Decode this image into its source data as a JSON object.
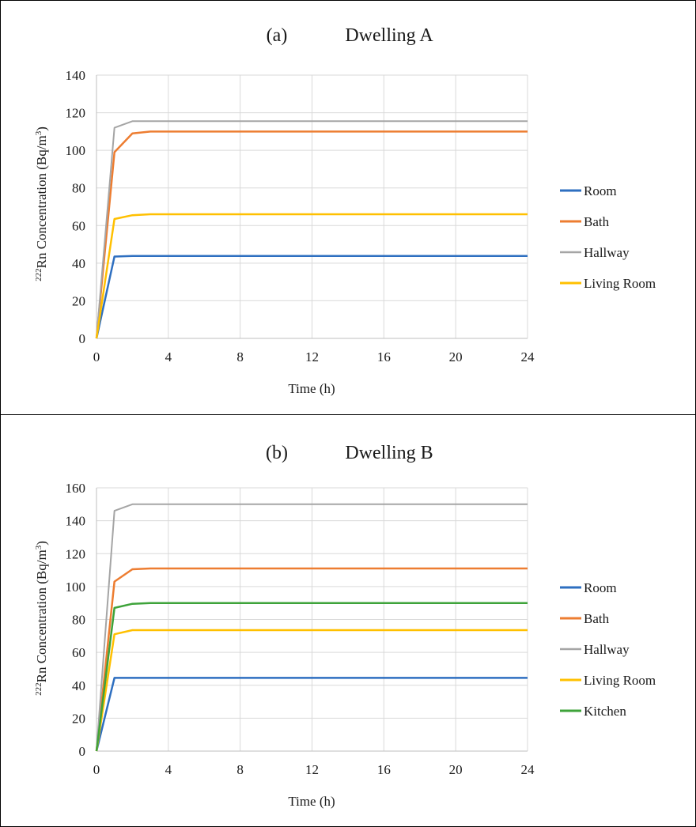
{
  "chart_data": [
    {
      "type": "line",
      "panel_label": "(a)",
      "title": "Dwelling A",
      "xlabel": "Time (h)",
      "ylabel_prefix": "222",
      "ylabel_main": "Rn Concentration (Bq/m",
      "ylabel_sup": "3",
      "ylabel_suffix": ")",
      "xlim": [
        0,
        24
      ],
      "ylim": [
        0,
        140
      ],
      "xticks": [
        0,
        4,
        8,
        12,
        16,
        20,
        24
      ],
      "yticks": [
        0,
        20,
        40,
        60,
        80,
        100,
        120,
        140
      ],
      "grid": true,
      "legend_position": "right",
      "x": [
        0,
        1,
        2,
        3,
        4,
        6,
        8,
        10,
        12,
        14,
        16,
        18,
        20,
        22,
        24
      ],
      "series": [
        {
          "name": "Room",
          "color": "#2e6fc0",
          "stroke": 2.5,
          "values": [
            0,
            43.5,
            43.8,
            43.8,
            43.8,
            43.8,
            43.8,
            43.8,
            43.8,
            43.8,
            43.8,
            43.8,
            43.8,
            43.8,
            43.8
          ]
        },
        {
          "name": "Bath",
          "color": "#ed7d31",
          "stroke": 2.5,
          "values": [
            0,
            99,
            109,
            110,
            110,
            110,
            110,
            110,
            110,
            110,
            110,
            110,
            110,
            110,
            110
          ]
        },
        {
          "name": "Hallway",
          "color": "#a5a5a5",
          "stroke": 2,
          "values": [
            0,
            112,
            115.5,
            115.5,
            115.5,
            115.5,
            115.5,
            115.5,
            115.5,
            115.5,
            115.5,
            115.5,
            115.5,
            115.5,
            115.5
          ]
        },
        {
          "name": "Living Room",
          "color": "#ffc000",
          "stroke": 2.5,
          "values": [
            0,
            63.5,
            65.5,
            66,
            66,
            66,
            66,
            66,
            66,
            66,
            66,
            66,
            66,
            66,
            66
          ]
        }
      ]
    },
    {
      "type": "line",
      "panel_label": "(b)",
      "title": "Dwelling B",
      "xlabel": "Time (h)",
      "ylabel_prefix": "222",
      "ylabel_main": "Rn Concentration (Bq/m",
      "ylabel_sup": "3",
      "ylabel_suffix": ")",
      "xlim": [
        0,
        24
      ],
      "ylim": [
        0,
        160
      ],
      "xticks": [
        0,
        4,
        8,
        12,
        16,
        20,
        24
      ],
      "yticks": [
        0,
        20,
        40,
        60,
        80,
        100,
        120,
        140,
        160
      ],
      "grid": true,
      "legend_position": "right",
      "x": [
        0,
        1,
        2,
        3,
        4,
        6,
        8,
        10,
        12,
        14,
        16,
        18,
        20,
        22,
        24
      ],
      "series": [
        {
          "name": "Room",
          "color": "#2e6fc0",
          "stroke": 2.5,
          "values": [
            0,
            44.5,
            44.5,
            44.5,
            44.5,
            44.5,
            44.5,
            44.5,
            44.5,
            44.5,
            44.5,
            44.5,
            44.5,
            44.5,
            44.5
          ]
        },
        {
          "name": "Bath",
          "color": "#ed7d31",
          "stroke": 2.5,
          "values": [
            0,
            103,
            110.5,
            111,
            111,
            111,
            111,
            111,
            111,
            111,
            111,
            111,
            111,
            111,
            111
          ]
        },
        {
          "name": "Hallway",
          "color": "#a5a5a5",
          "stroke": 2,
          "values": [
            0,
            146,
            150,
            150,
            150,
            150,
            150,
            150,
            150,
            150,
            150,
            150,
            150,
            150,
            150
          ]
        },
        {
          "name": "Living Room",
          "color": "#ffc000",
          "stroke": 2.5,
          "values": [
            0,
            71,
            73.5,
            73.5,
            73.5,
            73.5,
            73.5,
            73.5,
            73.5,
            73.5,
            73.5,
            73.5,
            73.5,
            73.5,
            73.5
          ]
        },
        {
          "name": "Kitchen",
          "color": "#3ea33a",
          "stroke": 2.5,
          "values": [
            0,
            87,
            89.5,
            90,
            90,
            90,
            90,
            90,
            90,
            90,
            90,
            90,
            90,
            90,
            90
          ]
        }
      ]
    }
  ]
}
